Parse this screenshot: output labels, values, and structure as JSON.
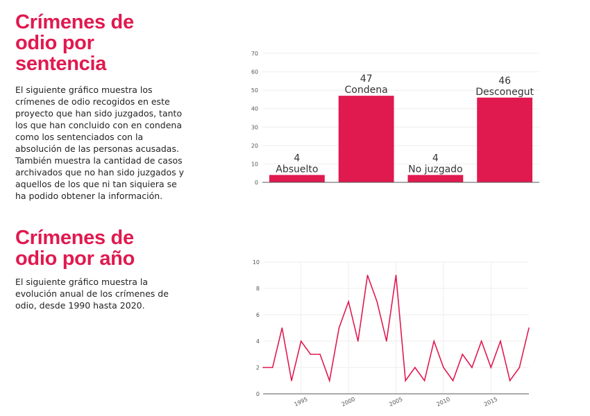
{
  "sections": [
    {
      "title_lines": [
        "Crímenes de",
        "odio por",
        "sentencia"
      ],
      "text": "El siguiente gráfico muestra los crímenes de odio recogidos en este proyecto que han sido juzgados, tanto los que han concluido con en condena como los sentenciados con la absolución de las personas acusadas. También muestra la cantidad de casos archivados que no han sido juzgados y aquellos de los que ni tan siquiera se ha podido obtener la información."
    },
    {
      "title_lines": [
        "Crímenes de",
        "odio por año"
      ],
      "text": "El siguiente gráfico muestra la evolución anual de los crímenes de odio, desde 1990 hasta 2020."
    }
  ],
  "colors": {
    "accent": "#e0194f"
  },
  "chart_data": [
    {
      "type": "bar",
      "categories": [
        "Absuelto",
        "Condena",
        "No juzgado",
        "Desconegut"
      ],
      "values": [
        4,
        47,
        4,
        46
      ],
      "ylim": [
        0,
        70
      ],
      "yticks": [
        0,
        10,
        20,
        30,
        40,
        50,
        60,
        70
      ],
      "grid": true
    },
    {
      "type": "line",
      "x": [
        1991,
        1992,
        1993,
        1994,
        1995,
        1996,
        1997,
        1998,
        1999,
        2000,
        2001,
        2002,
        2003,
        2004,
        2005,
        2006,
        2007,
        2008,
        2009,
        2010,
        2011,
        2012,
        2013,
        2014,
        2015,
        2016,
        2017,
        2018,
        2019
      ],
      "y": [
        2,
        2,
        5,
        1,
        4,
        3,
        3,
        1,
        5,
        7,
        4,
        9,
        7,
        4,
        9,
        1,
        2,
        1,
        4,
        2,
        1,
        3,
        2,
        4,
        2,
        4,
        1,
        2,
        5
      ],
      "xlim": [
        1991,
        2019
      ],
      "ylim": [
        0,
        10
      ],
      "xticks": [
        1995,
        2000,
        2005,
        2010,
        2015
      ],
      "yticks": [
        0,
        2,
        4,
        6,
        8,
        10
      ],
      "grid": true
    }
  ]
}
